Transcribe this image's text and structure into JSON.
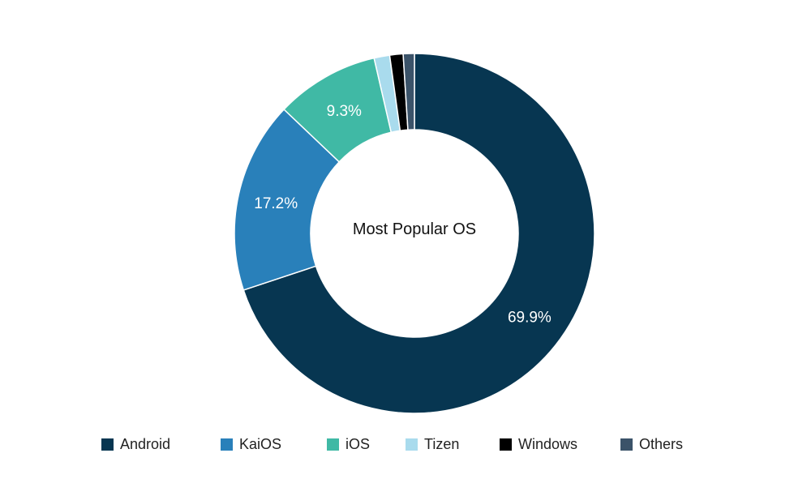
{
  "chart_data": {
    "type": "pie",
    "variant": "donut",
    "center_label": "Most Popular OS",
    "slices": [
      {
        "name": "Android",
        "value": 69.9,
        "label": "69.9%",
        "color": "#073651"
      },
      {
        "name": "KaiOS",
        "value": 17.2,
        "label": "17.2%",
        "color": "#2980ba"
      },
      {
        "name": "iOS",
        "value": 9.3,
        "label": "9.3%",
        "color": "#40b9a5"
      },
      {
        "name": "Tizen",
        "value": 1.4,
        "label": "",
        "color": "#a9dbed"
      },
      {
        "name": "Windows",
        "value": 1.2,
        "label": "",
        "color": "#000000"
      },
      {
        "name": "Others",
        "value": 1.0,
        "label": "",
        "color": "#3b5369"
      }
    ],
    "legend_position": "bottom"
  }
}
